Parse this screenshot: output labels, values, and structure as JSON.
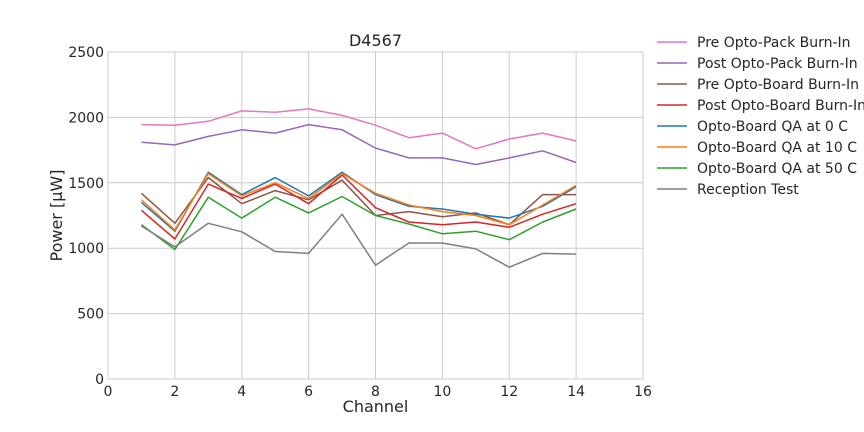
{
  "chart_data": {
    "type": "line",
    "title": "D4567",
    "xlabel": "Channel",
    "ylabel": "Power [μW]",
    "xlim": [
      0,
      16
    ],
    "ylim": [
      0,
      2500
    ],
    "xticks": [
      0,
      2,
      4,
      6,
      8,
      10,
      12,
      14,
      16
    ],
    "yticks": [
      0,
      500,
      1000,
      1500,
      2000,
      2500
    ],
    "grid": true,
    "legend_position": "outside-right",
    "x": [
      1,
      2,
      3,
      4,
      5,
      6,
      7,
      8,
      9,
      10,
      11,
      12,
      13,
      14
    ],
    "series": [
      {
        "name": "Pre Opto-Pack Burn-In",
        "color": "#e377c2",
        "values": [
          1945,
          1940,
          1970,
          2050,
          2040,
          2065,
          2015,
          1940,
          1845,
          1880,
          1760,
          1835,
          1880,
          1820
        ]
      },
      {
        "name": "Post Opto-Pack Burn-In",
        "color": "#9467bd",
        "values": [
          1810,
          1790,
          1855,
          1905,
          1880,
          1945,
          1905,
          1765,
          1690,
          1690,
          1640,
          1690,
          1745,
          1655
        ]
      },
      {
        "name": "Pre Opto-Board Burn-In",
        "color": "#8c564b",
        "values": [
          1420,
          1190,
          1540,
          1340,
          1440,
          1370,
          1520,
          1250,
          1280,
          1240,
          1270,
          1180,
          1410,
          1410
        ]
      },
      {
        "name": "Post Opto-Board Burn-In",
        "color": "#d62728",
        "values": [
          1290,
          1070,
          1490,
          1380,
          1490,
          1340,
          1560,
          1310,
          1200,
          1180,
          1200,
          1160,
          1260,
          1340
        ]
      },
      {
        "name": "Opto-Board QA at 0 C",
        "color": "#1f77b4",
        "values": [
          1350,
          1130,
          1580,
          1410,
          1540,
          1400,
          1580,
          1410,
          1320,
          1300,
          1260,
          1230,
          1320,
          1470
        ]
      },
      {
        "name": "Opto-Board QA at 10 C",
        "color": "#ff7f0e",
        "values": [
          1370,
          1140,
          1570,
          1400,
          1500,
          1380,
          1570,
          1420,
          1330,
          1280,
          1250,
          1180,
          1330,
          1480
        ]
      },
      {
        "name": "Opto-Board QA at 50 C",
        "color": "#2ca02c",
        "values": [
          1180,
          990,
          1390,
          1230,
          1390,
          1270,
          1395,
          1250,
          1185,
          1110,
          1130,
          1065,
          1200,
          1300
        ]
      },
      {
        "name": "Reception Test",
        "color": "#7f7f7f",
        "values": [
          1170,
          1010,
          1190,
          1125,
          975,
          960,
          1260,
          870,
          1040,
          1040,
          995,
          855,
          960,
          955
        ]
      }
    ]
  }
}
